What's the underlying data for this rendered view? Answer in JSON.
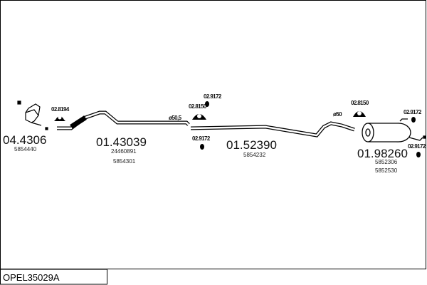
{
  "title": "OPEL35029A",
  "parts": [
    {
      "number": "04.4306",
      "oem": [
        "5854440"
      ]
    },
    {
      "number": "01.43039",
      "oem": [
        "24460891",
        "5854301"
      ]
    },
    {
      "number": "01.52390",
      "oem": [
        "5854232"
      ]
    },
    {
      "number": "01.98260",
      "oem": [
        "5852306",
        "5852530"
      ]
    }
  ],
  "fittings": {
    "clamp_front": "02.8194",
    "hanger_mid": "02.8150",
    "rubber_mid_top": "02.9172",
    "rubber_mid_bottom": "02.9172",
    "hanger_rear": "02.8150",
    "rubber_rear_top": "02.9172",
    "rubber_rear_bottom": "02.9172"
  },
  "diameters": {
    "mid": "ø50,5",
    "rear": "ø50"
  }
}
